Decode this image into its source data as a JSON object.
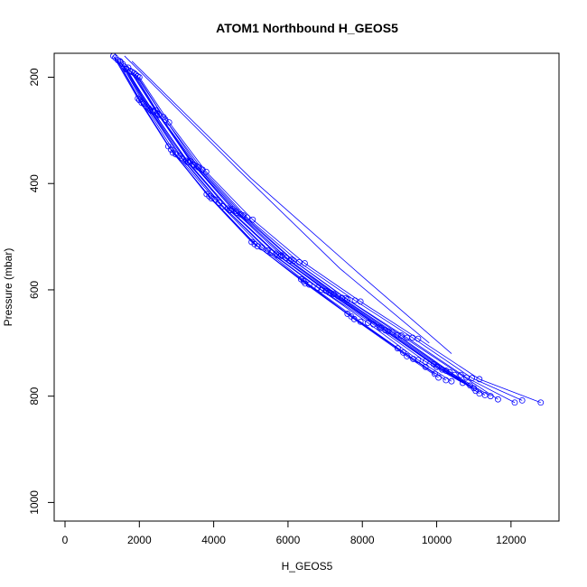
{
  "chart_data": {
    "type": "line",
    "title": "ATOM1 Northbound H_GEOS5",
    "xlabel": "H_GEOS5",
    "ylabel": "Pressure (mbar)",
    "xlim": [
      0,
      13000
    ],
    "ylim": [
      1035,
      155
    ],
    "y_reversed": true,
    "grid": false,
    "markers": "open-circle",
    "color": "#0000ff",
    "xticks": [
      0,
      2000,
      4000,
      6000,
      8000,
      10000,
      12000
    ],
    "yticks": [
      200,
      400,
      600,
      800,
      1000
    ],
    "series": [
      {
        "x": [
          1480,
          2120,
          2980,
          4040,
          5290,
          6570,
          7950,
          9370,
          10250
        ],
        "y": [
          170,
          250,
          345,
          430,
          520,
          590,
          660,
          730,
          770
        ]
      },
      {
        "x": [
          1640,
          2380,
          3300,
          4420,
          5720,
          7100,
          8460,
          9920,
          10900
        ],
        "y": [
          185,
          265,
          360,
          450,
          535,
          605,
          670,
          740,
          780
        ]
      },
      {
        "x": [
          1800,
          2520,
          3480,
          4630,
          6050,
          7450,
          8950,
          10480,
          11450
        ],
        "y": [
          190,
          270,
          365,
          455,
          545,
          615,
          685,
          760,
          800
        ]
      },
      {
        "x": [
          1300,
          1960,
          2780,
          3810,
          5020,
          6350,
          7600,
          8950,
          9700
        ],
        "y": [
          160,
          240,
          330,
          420,
          510,
          580,
          645,
          710,
          745
        ]
      },
      {
        "x": [
          1550,
          2250,
          3150,
          4250,
          5550,
          6900,
          8300,
          9700,
          10700
        ],
        "y": [
          175,
          258,
          352,
          443,
          530,
          600,
          665,
          735,
          775
        ]
      },
      {
        "x": [
          1750,
          2430,
          3370,
          4500,
          5820,
          7230,
          8700,
          10250,
          11150
        ],
        "y": [
          188,
          262,
          358,
          448,
          535,
          608,
          678,
          752,
          795
        ]
      },
      {
        "x": [
          1420,
          2060,
          2900,
          3940,
          5180,
          6460,
          7780,
          9200,
          10050
        ],
        "y": [
          168,
          248,
          342,
          428,
          518,
          588,
          655,
          725,
          765
        ]
      },
      {
        "x": [
          1900,
          2650,
          3600,
          4800,
          6150,
          7600,
          9200,
          10800,
          12100
        ],
        "y": [
          195,
          275,
          370,
          460,
          545,
          618,
          690,
          765,
          812
        ]
      },
      {
        "x": [
          1600,
          2300,
          3250,
          4380,
          5680,
          7020,
          8500,
          10000,
          11000
        ],
        "y": [
          180,
          262,
          357,
          447,
          532,
          602,
          672,
          745,
          785
        ]
      },
      {
        "x": [
          1700,
          2480,
          3450,
          4600,
          5950,
          7350,
          8800,
          10350,
          11300
        ],
        "y": [
          182,
          268,
          364,
          452,
          540,
          612,
          680,
          755,
          798
        ]
      },
      {
        "x": [
          1350,
          2000,
          2850,
          3880,
          5100,
          6420,
          7700,
          9100,
          9950
        ],
        "y": [
          163,
          243,
          336,
          424,
          514,
          584,
          650,
          718,
          758
        ]
      },
      {
        "x": [
          2000,
          2800,
          3800,
          5050,
          6450,
          7950,
          9500,
          11150,
          12800
        ],
        "y": [
          200,
          285,
          378,
          468,
          550,
          622,
          692,
          768,
          812
        ]
      },
      {
        "x": [
          1850,
          2550,
          3550,
          4720,
          6100,
          7550,
          9050,
          10650,
          11650
        ],
        "y": [
          192,
          272,
          368,
          458,
          543,
          616,
          686,
          760,
          806
        ]
      },
      {
        "x": [
          1500,
          2200,
          3080,
          4150,
          5450,
          6800,
          8150,
          9500,
          10400
        ],
        "y": [
          172,
          255,
          348,
          436,
          526,
          596,
          662,
          732,
          772
        ]
      },
      {
        "x": [
          1650,
          2350,
          3320,
          4450,
          5780,
          7150,
          8620,
          10150,
          11050
        ],
        "y": [
          184,
          264,
          360,
          450,
          537,
          606,
          676,
          750,
          790
        ]
      },
      {
        "x": [
          1950,
          2700,
          3700,
          4900,
          6300,
          7800,
          9350,
          10950,
          12300
        ],
        "y": [
          198,
          280,
          374,
          464,
          548,
          620,
          690,
          766,
          808
        ]
      }
    ],
    "long_segments": [
      {
        "x": [
          1600,
          4600,
          7400,
          9800
        ],
        "y": [
          160,
          370,
          560,
          700
        ]
      },
      {
        "x": [
          1800,
          5000,
          8000,
          10400
        ],
        "y": [
          170,
          390,
          575,
          720
        ]
      }
    ]
  }
}
